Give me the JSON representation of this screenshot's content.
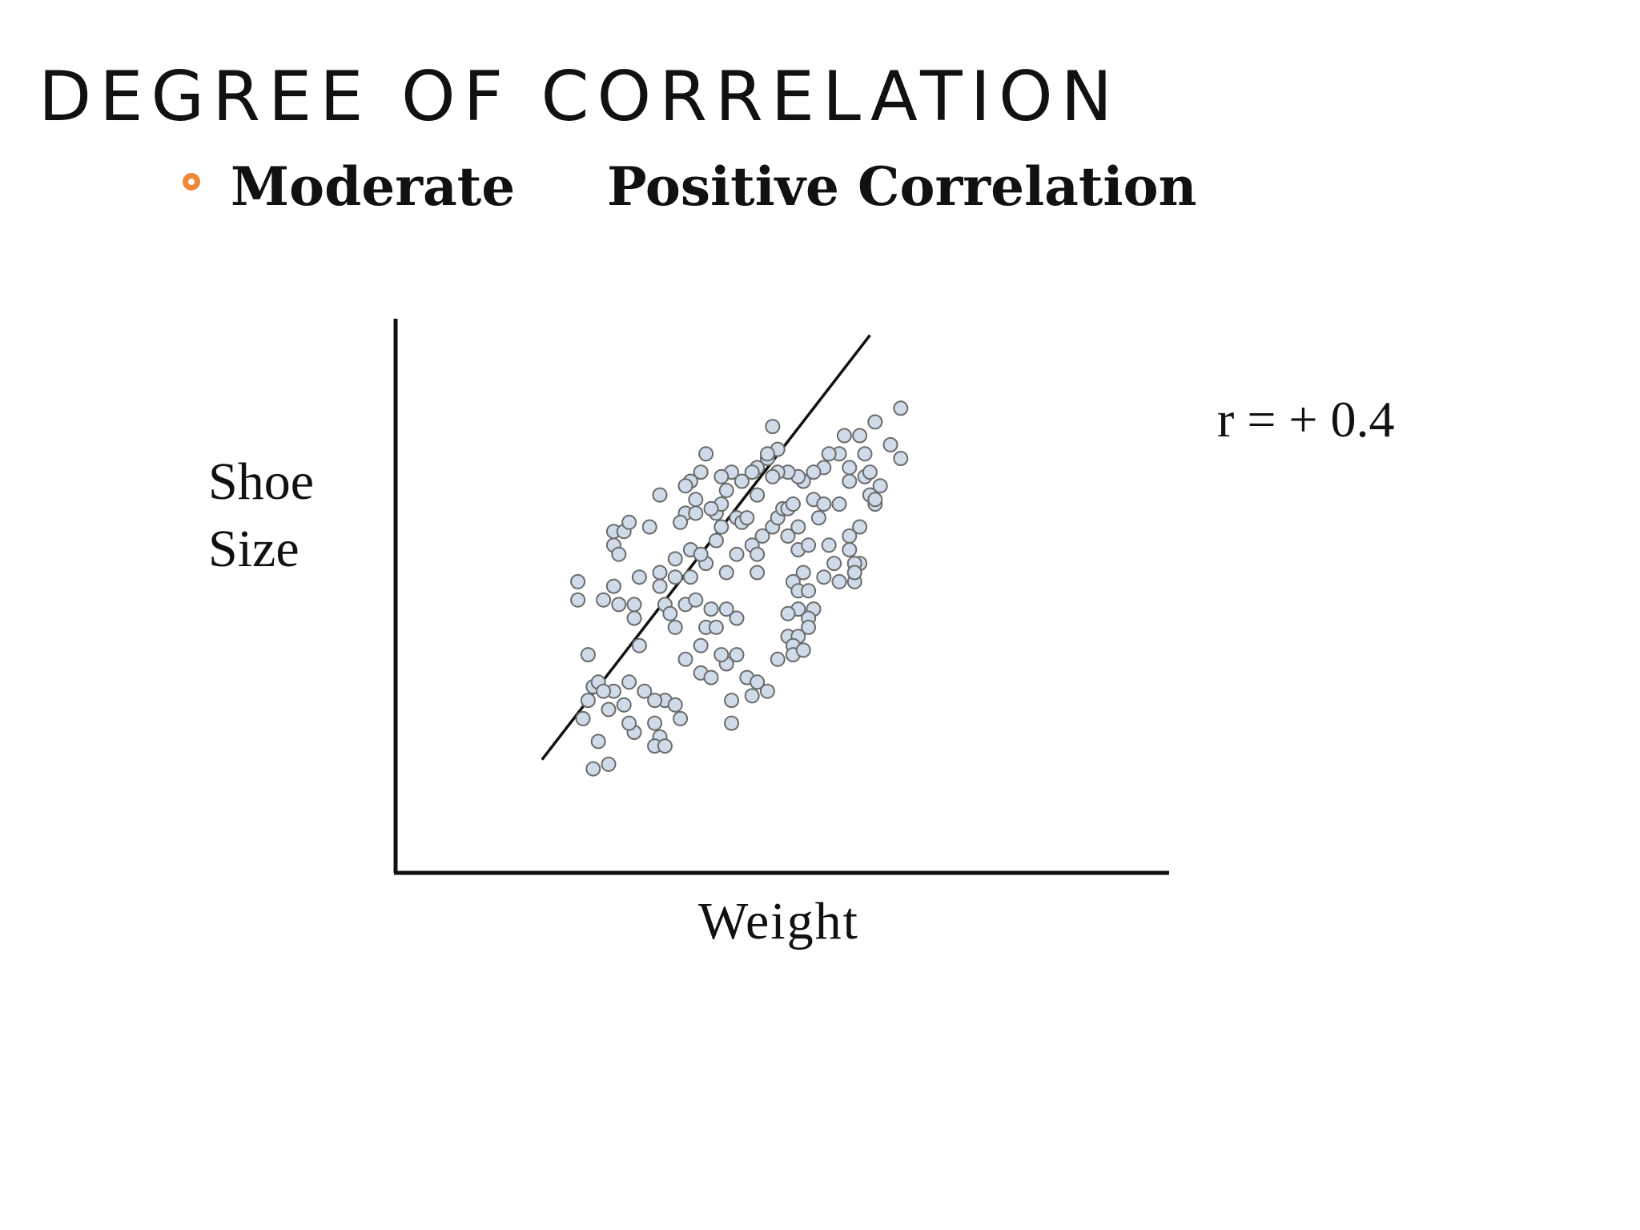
{
  "slide": {
    "title": "DEGREE OF CORRELATION",
    "bullet": {
      "words": [
        "Moderate",
        "Positive Correlation"
      ]
    },
    "accent_color": "#f0883a"
  },
  "chart_data": {
    "type": "scatter",
    "title": "",
    "xlabel": "Weight",
    "ylabel_lines": [
      "Shoe",
      "Size"
    ],
    "annotation": "r = + 0.4",
    "xlim": [
      0,
      100
    ],
    "ylim": [
      0,
      100
    ],
    "grid": false,
    "point_color": "#cfdbe8",
    "trendline": {
      "x": [
        12,
        76
      ],
      "y": [
        9,
        102
      ]
    },
    "points": [
      [
        19,
        44
      ],
      [
        24,
        44
      ],
      [
        27,
        43
      ],
      [
        26,
        47
      ],
      [
        30,
        40
      ],
      [
        31,
        34
      ],
      [
        26,
        24
      ],
      [
        22,
        25
      ],
      [
        20,
        18
      ],
      [
        21,
        32
      ],
      [
        29,
        26
      ],
      [
        30,
        43
      ],
      [
        31,
        49
      ],
      [
        35,
        50
      ],
      [
        35,
        47
      ],
      [
        36,
        43
      ],
      [
        40,
        43
      ],
      [
        38,
        49
      ],
      [
        43,
        34
      ],
      [
        40,
        31
      ],
      [
        38,
        38
      ],
      [
        37,
        41
      ],
      [
        42,
        44
      ],
      [
        44,
        38
      ],
      [
        46,
        38
      ],
      [
        48,
        42
      ],
      [
        50,
        40
      ],
      [
        45,
        42
      ],
      [
        43,
        28
      ],
      [
        45,
        27
      ],
      [
        48,
        30
      ],
      [
        47,
        32
      ],
      [
        50,
        32
      ],
      [
        52,
        27
      ],
      [
        49,
        22
      ],
      [
        49,
        17
      ],
      [
        53,
        23
      ],
      [
        54,
        26
      ],
      [
        56,
        24
      ],
      [
        58,
        31
      ],
      [
        36,
        22
      ],
      [
        38,
        21
      ],
      [
        39,
        18
      ],
      [
        34,
        17
      ],
      [
        35,
        14
      ],
      [
        34,
        12
      ],
      [
        36,
        12
      ],
      [
        30,
        15
      ],
      [
        25,
        20
      ],
      [
        22,
        7
      ],
      [
        25,
        8
      ],
      [
        29,
        17
      ],
      [
        28,
        21
      ],
      [
        32,
        24
      ],
      [
        34,
        22
      ],
      [
        23,
        26
      ],
      [
        24,
        24
      ],
      [
        23,
        13
      ],
      [
        21,
        22
      ],
      [
        19,
        48
      ],
      [
        26,
        56
      ],
      [
        27,
        54
      ],
      [
        26,
        59
      ],
      [
        28,
        59
      ],
      [
        29,
        61
      ],
      [
        33,
        60
      ],
      [
        35,
        67
      ],
      [
        40,
        63
      ],
      [
        42,
        66
      ],
      [
        46,
        63
      ],
      [
        47,
        60
      ],
      [
        50,
        62
      ],
      [
        51,
        61
      ],
      [
        52,
        62
      ],
      [
        53,
        56
      ],
      [
        54,
        54
      ],
      [
        54,
        50
      ],
      [
        55,
        58
      ],
      [
        57,
        60
      ],
      [
        58,
        62
      ],
      [
        59,
        64
      ],
      [
        60,
        64
      ],
      [
        61,
        65
      ],
      [
        60,
        58
      ],
      [
        62,
        60
      ],
      [
        62,
        55
      ],
      [
        64,
        56
      ],
      [
        63,
        50
      ],
      [
        61,
        48
      ],
      [
        62,
        46
      ],
      [
        64,
        46
      ],
      [
        65,
        42
      ],
      [
        64,
        40
      ],
      [
        62,
        42
      ],
      [
        60,
        41
      ],
      [
        60,
        36
      ],
      [
        62,
        36
      ],
      [
        64,
        38
      ],
      [
        61,
        34
      ],
      [
        61,
        32
      ],
      [
        63,
        33
      ],
      [
        67,
        49
      ],
      [
        68,
        56
      ],
      [
        69,
        52
      ],
      [
        70,
        48
      ],
      [
        73,
        48
      ],
      [
        72,
        55
      ],
      [
        72,
        58
      ],
      [
        74,
        60
      ],
      [
        74,
        52
      ],
      [
        73,
        52
      ],
      [
        73,
        50
      ],
      [
        66,
        62
      ],
      [
        65,
        66
      ],
      [
        67,
        65
      ],
      [
        70,
        65
      ],
      [
        72,
        70
      ],
      [
        72,
        73
      ],
      [
        75,
        71
      ],
      [
        76,
        72
      ],
      [
        76,
        67
      ],
      [
        77,
        65
      ],
      [
        77,
        66
      ],
      [
        78,
        69
      ],
      [
        80,
        78
      ],
      [
        82,
        75
      ],
      [
        82,
        86
      ],
      [
        77,
        83
      ],
      [
        75,
        76
      ],
      [
        74,
        80
      ],
      [
        71,
        80
      ],
      [
        70,
        76
      ],
      [
        68,
        76
      ],
      [
        67,
        73
      ],
      [
        65,
        72
      ],
      [
        63,
        70
      ],
      [
        62,
        71
      ],
      [
        60,
        72
      ],
      [
        58,
        72
      ],
      [
        57,
        71
      ],
      [
        56,
        75
      ],
      [
        54,
        73
      ],
      [
        57,
        82
      ],
      [
        58,
        77
      ],
      [
        56,
        76
      ],
      [
        54,
        67
      ],
      [
        53,
        72
      ],
      [
        51,
        70
      ],
      [
        49,
        72
      ],
      [
        47,
        71
      ],
      [
        48,
        68
      ],
      [
        47,
        65
      ],
      [
        45,
        64
      ],
      [
        44,
        76
      ],
      [
        43,
        72
      ],
      [
        41,
        70
      ],
      [
        40,
        69
      ],
      [
        39,
        61
      ],
      [
        42,
        63
      ],
      [
        46,
        57
      ],
      [
        44,
        52
      ],
      [
        41,
        49
      ],
      [
        38,
        53
      ],
      [
        41,
        55
      ],
      [
        43,
        54
      ],
      [
        50,
        54
      ],
      [
        48,
        50
      ]
    ]
  }
}
